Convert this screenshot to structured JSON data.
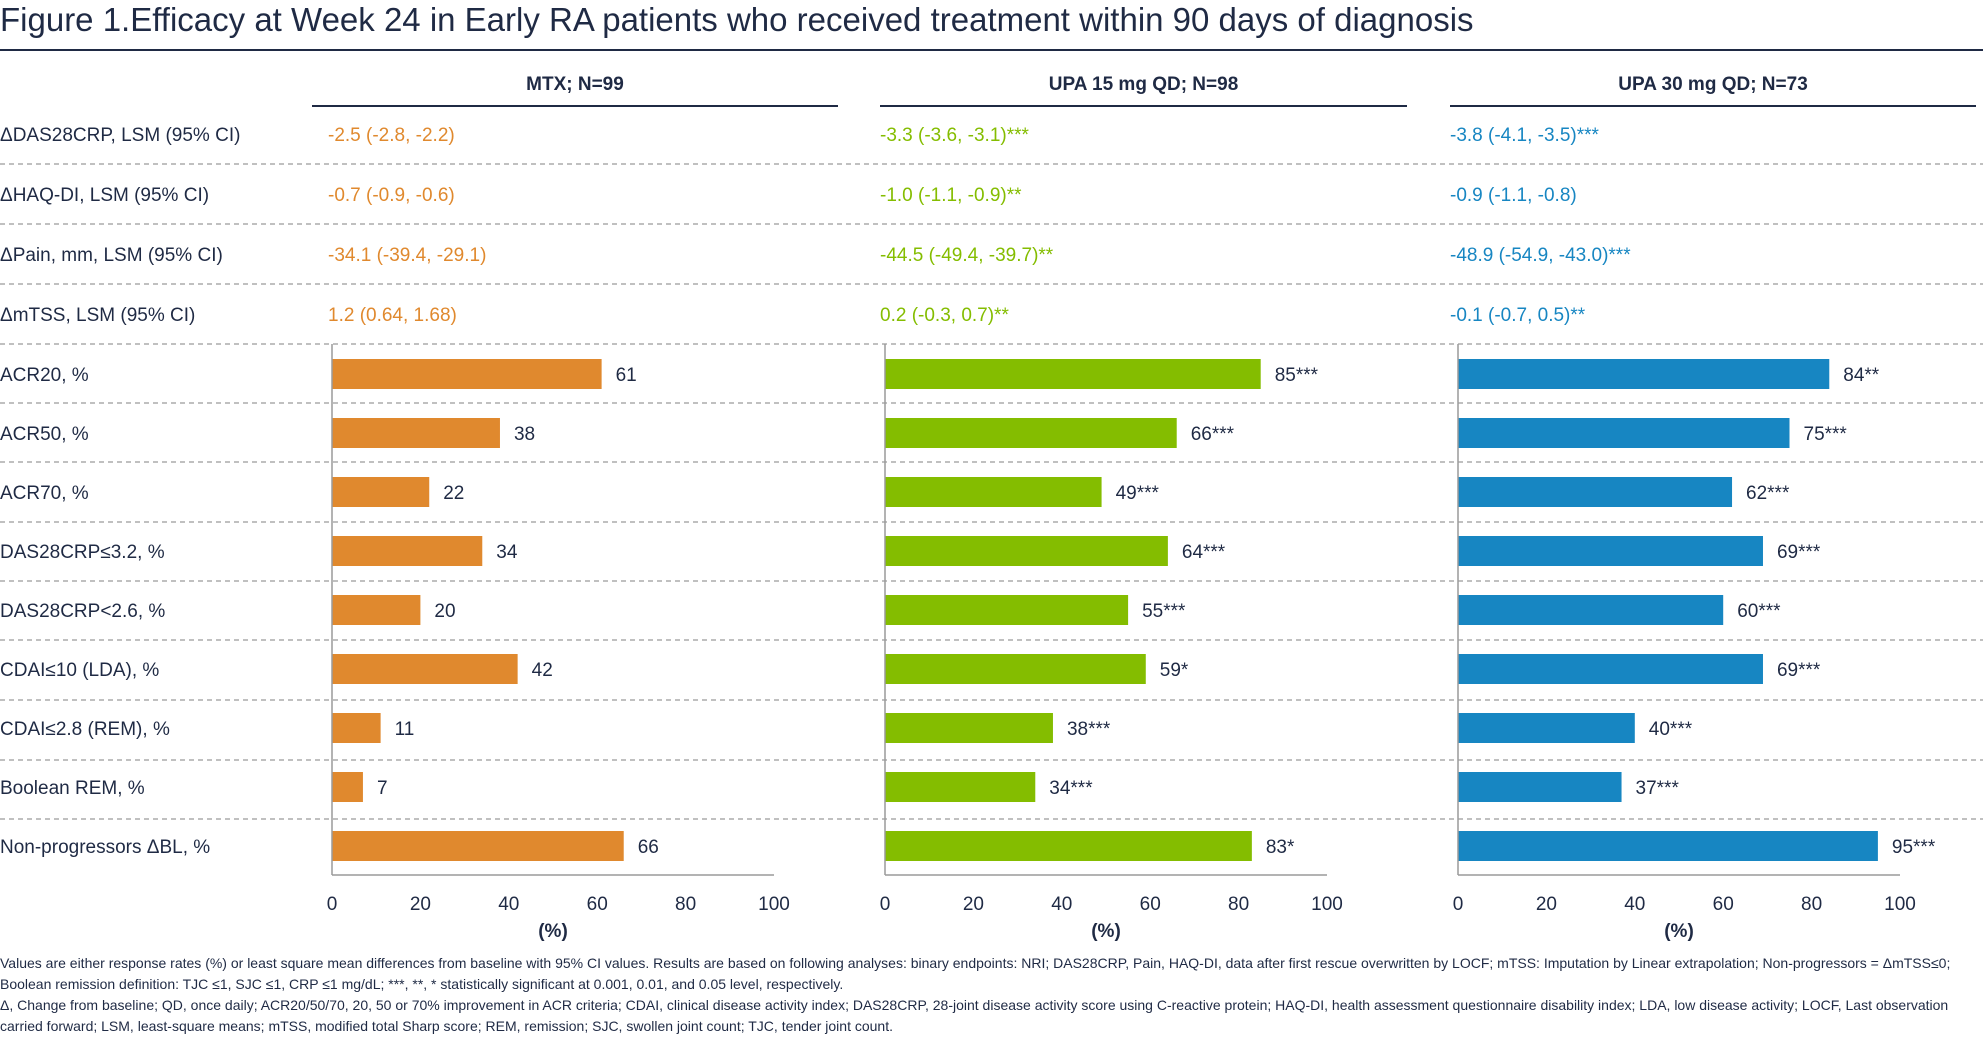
{
  "title": "Figure 1.Efficacy at Week 24 in Early RA patients who received treatment within 90 days of diagnosis",
  "colors": {
    "MTX": "#e0892e",
    "UPA15": "#84bd00",
    "UPA30": "#1786c2",
    "text": "#1f2a44",
    "divider": "#9a9a9a"
  },
  "chart_data": {
    "type": "bar",
    "orientation": "horizontal",
    "panels": [
      {
        "name": "MTX; N=99",
        "color_key": "MTX"
      },
      {
        "name": "UPA 15 mg QD; N=98",
        "color_key": "UPA15"
      },
      {
        "name": "UPA 30 mg QD; N=73",
        "color_key": "UPA30"
      }
    ],
    "continuous_rows": [
      {
        "label": "ΔDAS28CRP, LSM (95% CI)",
        "values": [
          "-2.5 (-2.8, -2.2)",
          "-3.3 (-3.6, -3.1)***",
          "-3.8 (-4.1, -3.5)***"
        ]
      },
      {
        "label": "ΔHAQ-DI, LSM (95% CI)",
        "values": [
          "-0.7 (-0.9, -0.6)",
          "-1.0 (-1.1, -0.9)**",
          "-0.9 (-1.1, -0.8)"
        ]
      },
      {
        "label": "ΔPain, mm, LSM (95% CI)",
        "values": [
          "-34.1 (-39.4, -29.1)",
          "-44.5 (-49.4, -39.7)**",
          "-48.9 (-54.9, -43.0)***"
        ]
      },
      {
        "label": "ΔmTSS, LSM (95% CI)",
        "values": [
          "1.2 (0.64, 1.68)",
          "0.2 (-0.3, 0.7)**",
          "-0.1 (-0.7, 0.5)**"
        ]
      }
    ],
    "categories": [
      "ACR20, %",
      "ACR50, %",
      "ACR70, %",
      "DAS28CRP≤3.2, %",
      "DAS28CRP<2.6, %",
      "CDAI≤10 (LDA), %",
      "CDAI≤2.8 (REM), %",
      "Boolean REM, %",
      "Non-progressors ΔBL, %"
    ],
    "series": [
      {
        "name": "MTX; N=99",
        "values": [
          61,
          38,
          22,
          34,
          20,
          42,
          11,
          7,
          66
        ],
        "labels": [
          "61",
          "38",
          "22",
          "34",
          "20",
          "42",
          "11",
          "7",
          "66"
        ]
      },
      {
        "name": "UPA 15 mg QD; N=98",
        "values": [
          85,
          66,
          49,
          64,
          55,
          59,
          38,
          34,
          83
        ],
        "labels": [
          "85***",
          "66***",
          "49***",
          "64***",
          "55***",
          "59*",
          "38***",
          "34***",
          "83*"
        ]
      },
      {
        "name": "UPA 30 mg QD; N=73",
        "values": [
          84,
          75,
          62,
          69,
          60,
          69,
          40,
          37,
          95
        ],
        "labels": [
          "84**",
          "75***",
          "62***",
          "69***",
          "60***",
          "69***",
          "40***",
          "37***",
          "95***"
        ]
      }
    ],
    "xlim": [
      0,
      100
    ],
    "xticks": [
      "0",
      "20",
      "40",
      "60",
      "80",
      "100"
    ],
    "xlabel": "(%)",
    "grid": false
  },
  "footnotes": [
    "Values are either response rates (%) or least square mean differences from baseline with 95% CI values. Results are based on following analyses: binary endpoints: NRI; DAS28CRP, Pain, HAQ-DI, data after first rescue overwritten by LOCF; mTSS: Imputation by Linear extrapolation; Non-progressors = ΔmTSS≤0; Boolean remission definition: TJC ≤1, SJC ≤1, CRP ≤1 mg/dL; ***, **, * statistically significant at 0.001, 0.01, and 0.05 level, respectively.",
    "Δ, Change from baseline; QD, once daily; ACR20/50/70, 20, 50 or 70% improvement in ACR criteria; CDAI, clinical disease activity index; DAS28CRP, 28-joint disease activity score using C-reactive protein; HAQ-DI, health assessment questionnaire disability index; LDA, low disease activity; LOCF, Last observation carried forward; LSM, least-square means; mTSS, modified total Sharp score; REM, remission; SJC, swollen joint count; TJC, tender joint count."
  ]
}
